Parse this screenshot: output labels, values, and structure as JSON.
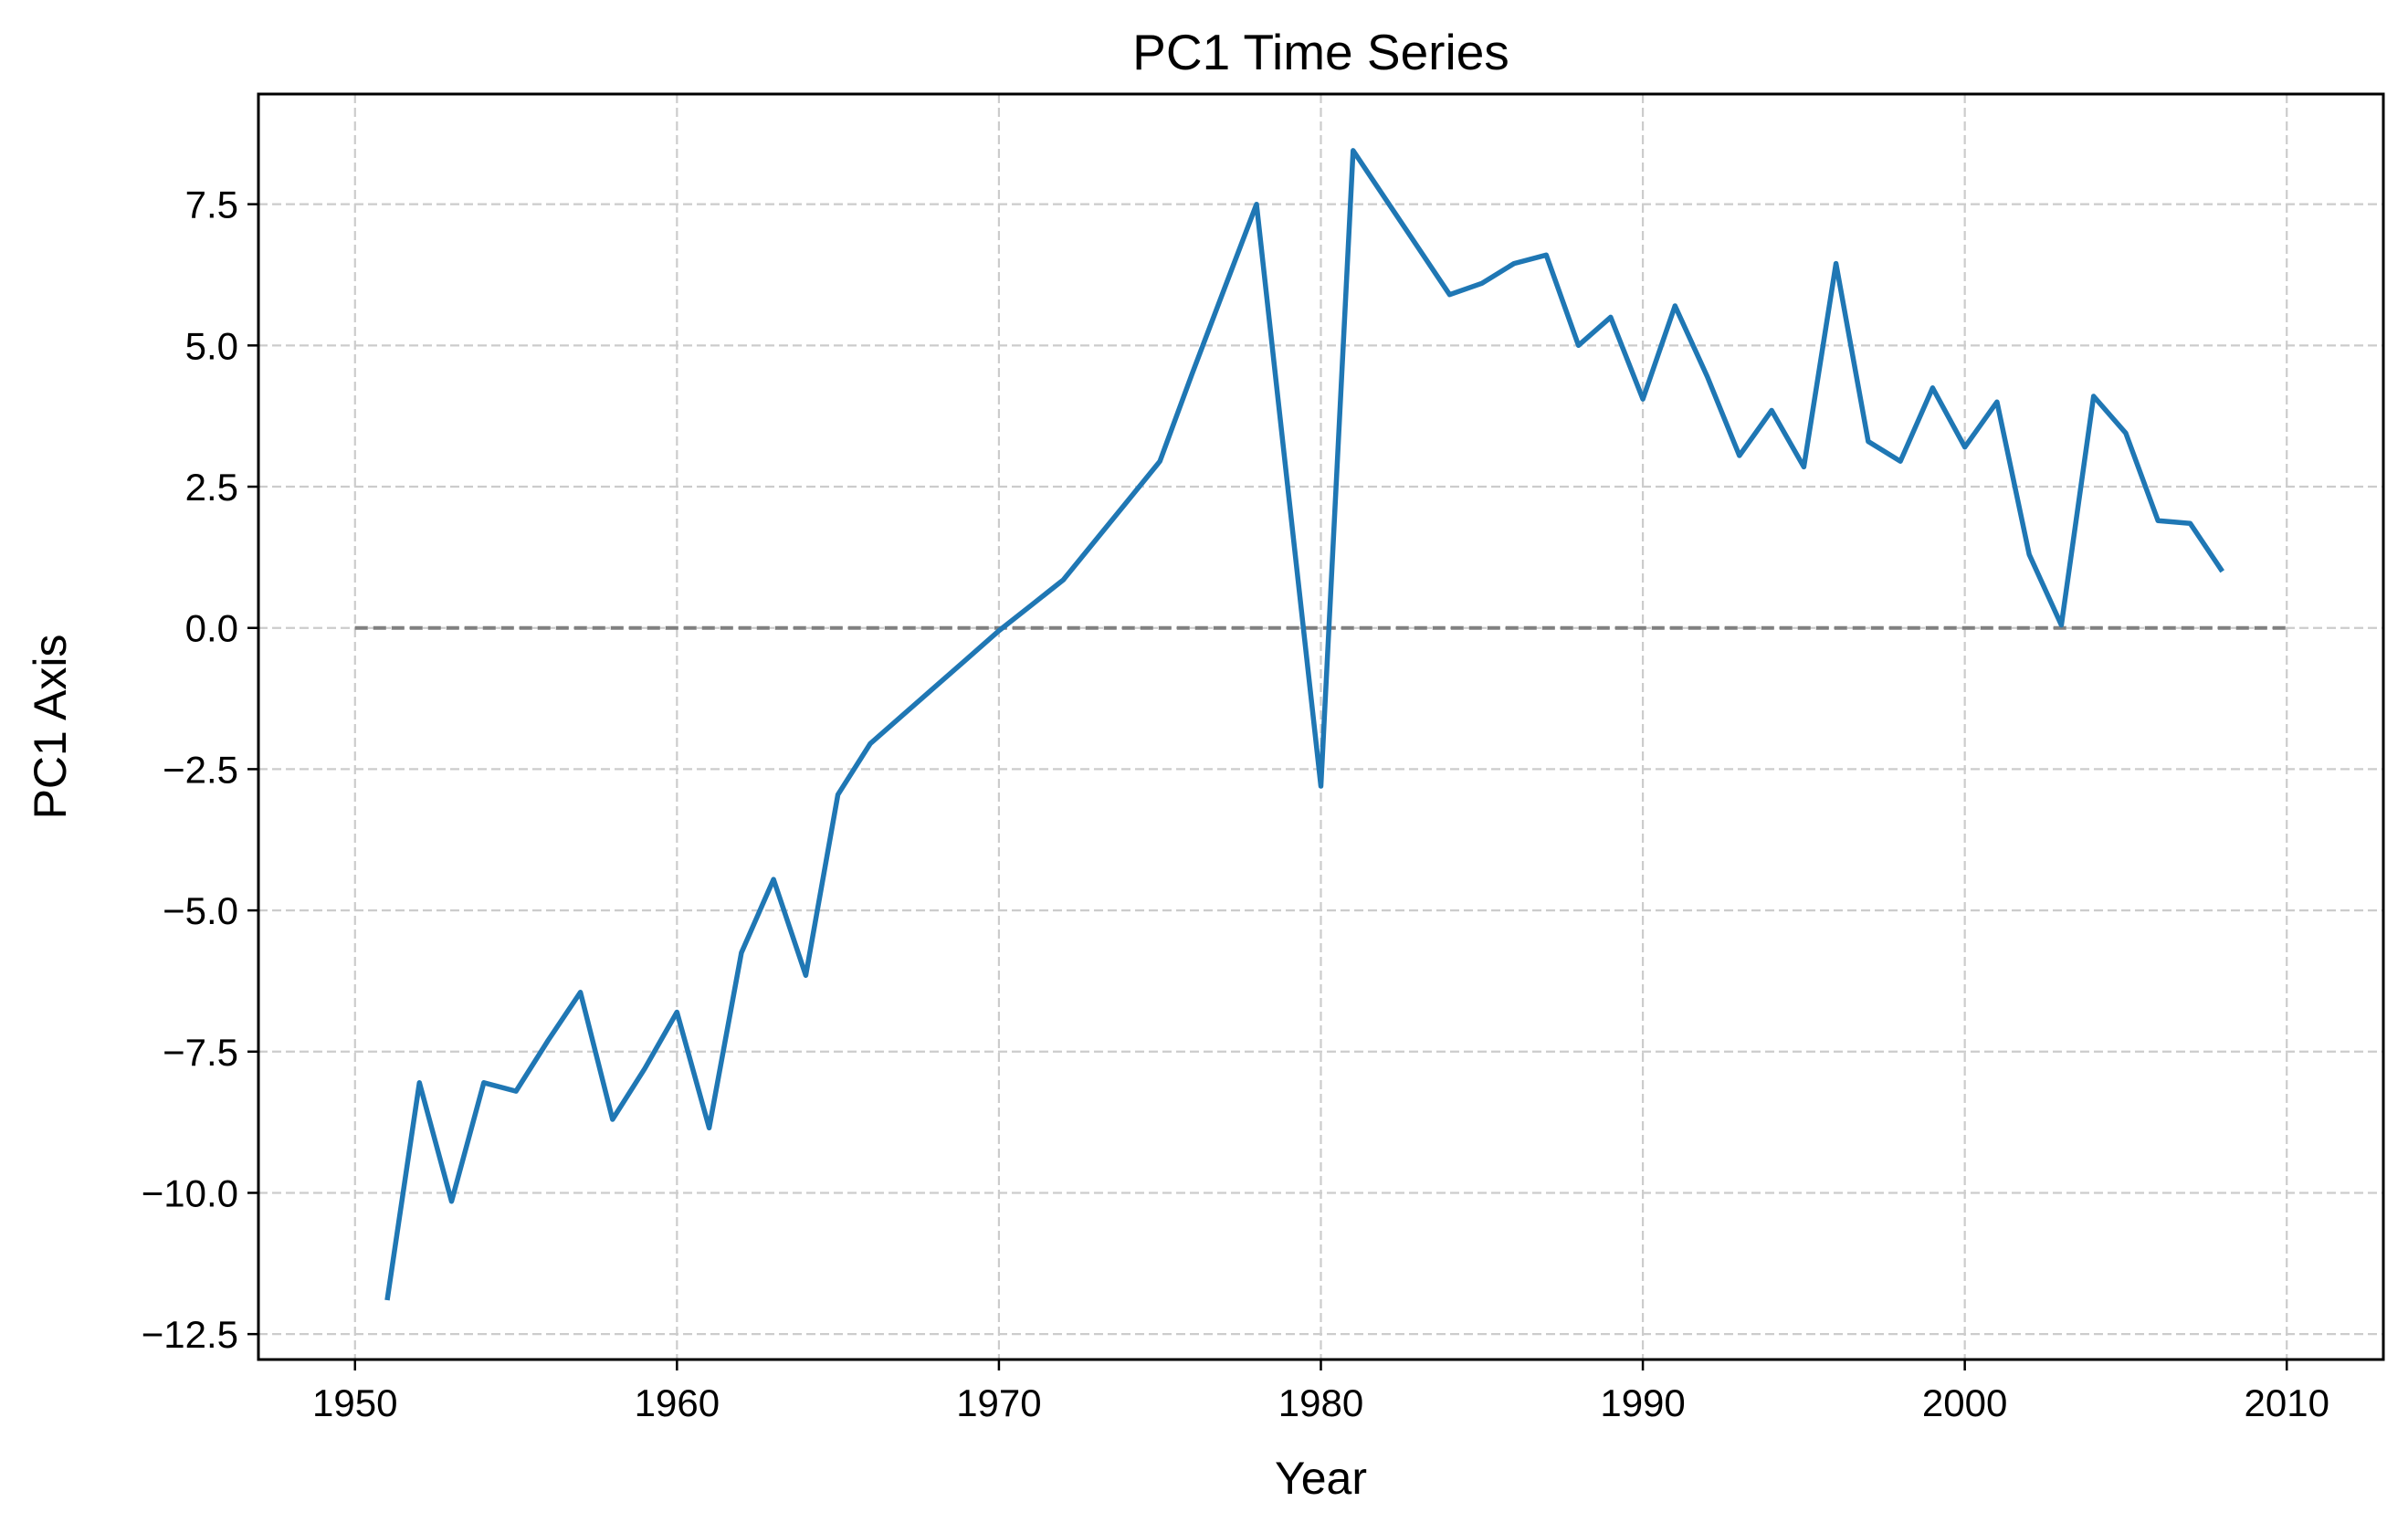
{
  "chart_data": {
    "type": "line",
    "title": "PC1 Time Series",
    "xlabel": "Year",
    "ylabel": "PC1 Axis",
    "xlim": [
      1947,
      2013
    ],
    "ylim": [
      -12.95,
      9.45
    ],
    "xticks": [
      1950,
      1960,
      1970,
      1980,
      1990,
      2000,
      2010
    ],
    "yticks": [
      -12.5,
      -10.0,
      -7.5,
      -5.0,
      -2.5,
      0.0,
      2.5,
      5.0,
      7.5
    ],
    "xtick_labels": [
      "1950",
      "1960",
      "1970",
      "1980",
      "1990",
      "2000",
      "2010"
    ],
    "ytick_labels": [
      "−12.5",
      "−10.0",
      "−7.5",
      "−5.0",
      "−2.5",
      "0.0",
      "2.5",
      "5.0",
      "7.5"
    ],
    "grid": true,
    "reference_line": {
      "y": 0,
      "x_start": 1950,
      "x_end": 2010,
      "color": "#808080",
      "style": "dashed"
    },
    "series": [
      {
        "color": "#1f77b4",
        "x": [
          1951,
          1952,
          1953,
          1954,
          1955,
          1956,
          1957,
          1958,
          1959,
          1960,
          1961,
          1962,
          1963,
          1964,
          1965,
          1966,
          1967,
          1968,
          1969,
          1970,
          1971,
          1972,
          1973,
          1974,
          1975,
          1976,
          1977,
          1978,
          1979,
          1980,
          1981,
          1982,
          1983,
          1984,
          1985,
          1986,
          1987,
          1988,
          1989,
          1990,
          1991,
          1992,
          1993,
          1994,
          1995,
          1996,
          1997,
          1998,
          1999,
          2000,
          2001,
          2002,
          2003,
          2004,
          2005,
          2006,
          2007,
          2008
        ],
        "y": [
          -11.9,
          -8.05,
          -10.15,
          -8.05,
          -8.2,
          -7.3,
          -6.45,
          -8.7,
          -7.8,
          -6.8,
          -8.85,
          -5.75,
          -4.45,
          -6.15,
          -2.95,
          -2.05,
          -1.55,
          -1.05,
          -0.55,
          -0.05,
          0.4,
          0.85,
          1.55,
          2.25,
          2.95,
          4.5,
          6.0,
          7.5,
          2.35,
          -2.8,
          8.45,
          7.6,
          6.75,
          5.9,
          6.1,
          6.45,
          6.6,
          5.0,
          5.5,
          4.05,
          5.7,
          4.45,
          3.05,
          3.85,
          2.85,
          6.45,
          3.3,
          2.95,
          4.25,
          3.2,
          4.0,
          1.3,
          0.05,
          4.1,
          3.45,
          1.9,
          1.85,
          1.0
        ]
      }
    ]
  }
}
